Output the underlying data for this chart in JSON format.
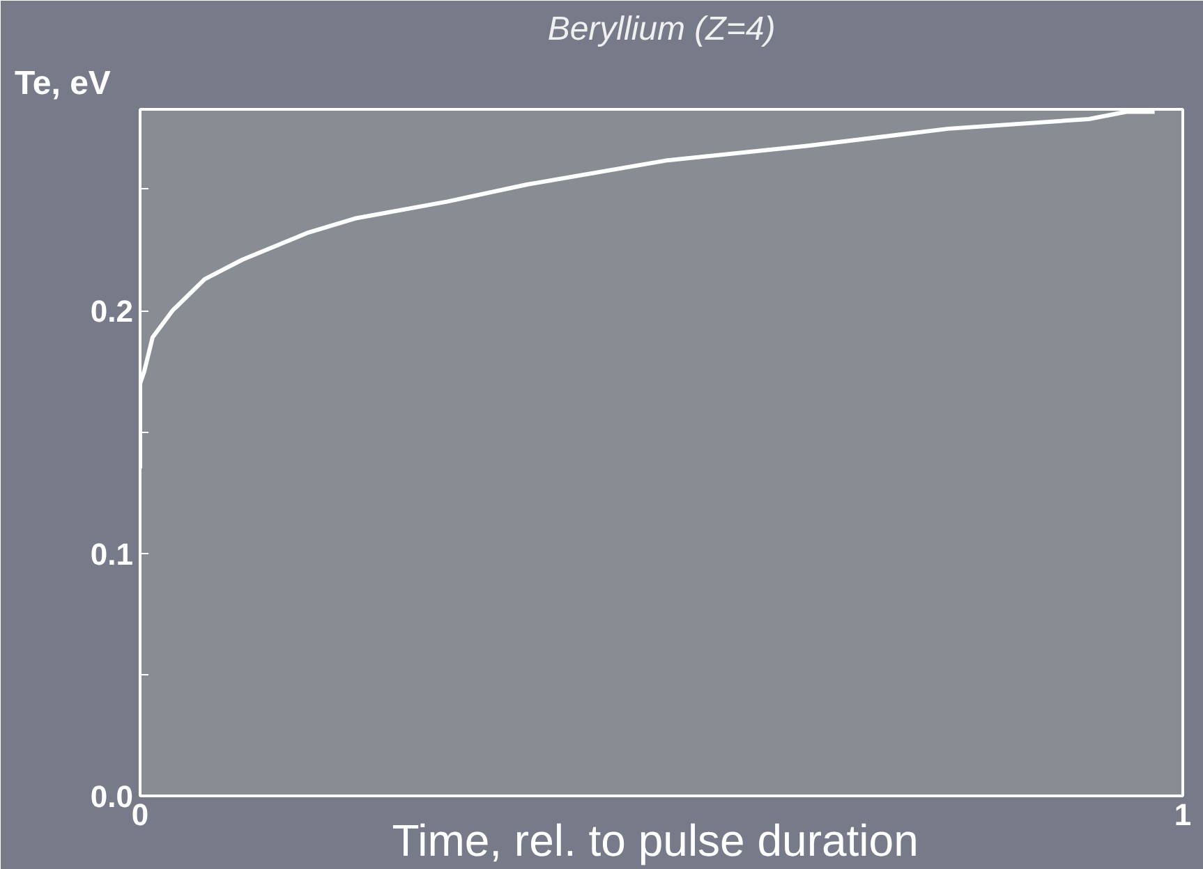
{
  "chart_data": {
    "type": "line",
    "title": "Beryllium (Z=4)",
    "xlabel": "Time,  rel. to pulse duration",
    "ylabel": "Te, eV",
    "x": [
      0,
      0,
      0.004,
      0.012,
      0.031,
      0.062,
      0.098,
      0.16,
      0.206,
      0.295,
      0.371,
      0.506,
      0.641,
      0.775,
      0.91,
      0.946,
      0.973
    ],
    "series": [
      {
        "color": "#ffffff",
        "values": [
          0.135,
          0.17,
          0.175,
          0.189,
          0.2,
          0.213,
          0.221,
          0.232,
          0.238,
          0.245,
          0.252,
          0.262,
          0.268,
          0.275,
          0.279,
          0.282,
          0.282
        ]
      }
    ],
    "xlim": [
      0,
      1
    ],
    "ylim": [
      0,
      0.283
    ],
    "xticks": [
      0,
      1
    ],
    "yticks": [
      {
        "value": 0,
        "label": "0.0"
      },
      {
        "value": 0.05,
        "label": null
      },
      {
        "value": 0.1,
        "label": "0.1"
      },
      {
        "value": 0.15,
        "label": null
      },
      {
        "value": 0.2,
        "label": "0.2"
      },
      {
        "value": 0.25,
        "label": null
      }
    ],
    "grid": false,
    "marker": "none",
    "line_style": "solid"
  }
}
